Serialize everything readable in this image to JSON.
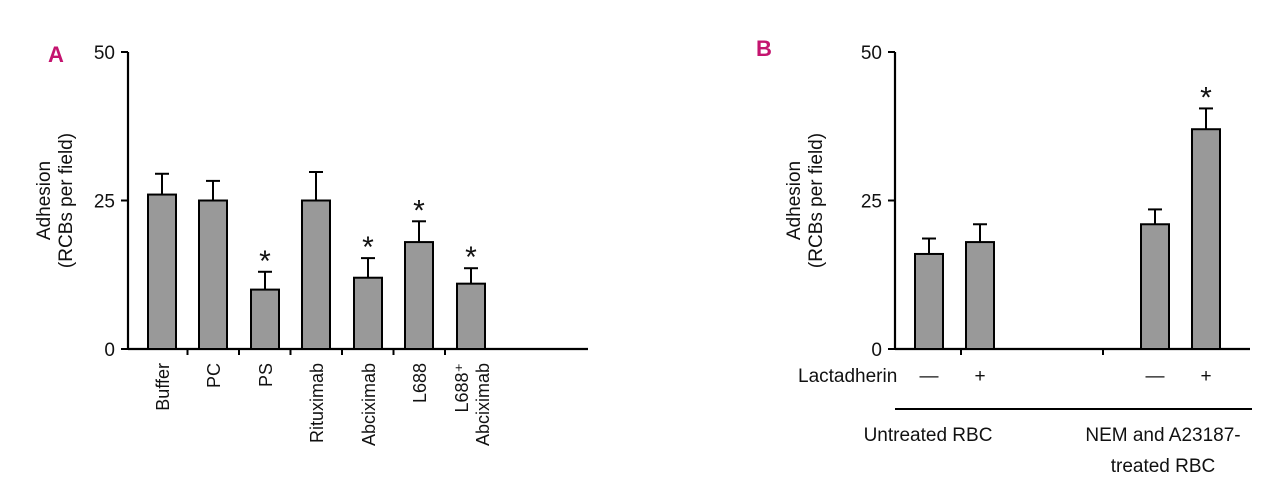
{
  "figure": {
    "background": "#ffffff",
    "bar_color": "#999999",
    "panel_letter_color": "#c4146f"
  },
  "chart_data": [
    {
      "panel": "A",
      "type": "bar",
      "ylabel_lines": [
        "Adhesion",
        "(RCBs per field)"
      ],
      "ylim": [
        0,
        50
      ],
      "yticks": [
        0,
        25,
        50
      ],
      "categories": [
        "Buffer",
        "PC",
        "PS",
        "Rituximab",
        "Abciximab",
        "L688",
        "L688+ Abciximab"
      ],
      "category_label_lines": [
        [
          "Buffer"
        ],
        [
          "PC"
        ],
        [
          "PS"
        ],
        [
          "Rituximab"
        ],
        [
          "Abciximab"
        ],
        [
          "L688"
        ],
        [
          "L688⁺",
          "Abciximab"
        ]
      ],
      "values": [
        26,
        25,
        10,
        25,
        12,
        18,
        11
      ],
      "errors": [
        3.5,
        3.3,
        3,
        4.8,
        3.3,
        3.5,
        2.6
      ],
      "significance": [
        "",
        "",
        "*",
        "",
        "*",
        "*",
        "*"
      ]
    },
    {
      "panel": "B",
      "type": "bar",
      "ylabel_lines": [
        "Adhesion",
        "(RCBs per field)"
      ],
      "ylim": [
        0,
        50
      ],
      "yticks": [
        0,
        25,
        50
      ],
      "row_label": "Lactadherin",
      "categories": [
        "—",
        "+",
        "—",
        "+"
      ],
      "values": [
        16,
        18,
        21,
        37
      ],
      "errors": [
        2.6,
        3,
        2.5,
        3.5
      ],
      "significance": [
        "",
        "",
        "",
        "*"
      ],
      "groups": [
        {
          "label_lines": [
            "Untreated RBC"
          ]
        },
        {
          "label_lines": [
            "NEM and A23187-",
            "treated RBC"
          ]
        }
      ]
    }
  ]
}
